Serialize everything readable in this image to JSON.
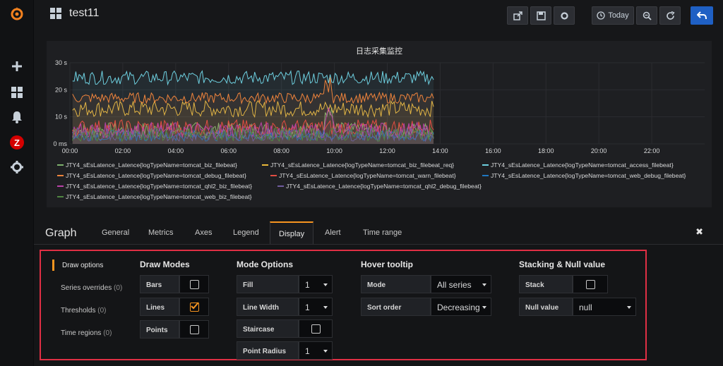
{
  "sidebar": {
    "icons": [
      "grafana-logo-icon",
      "plus-icon",
      "dashboards-icon",
      "bell-icon",
      "zabbix-icon",
      "gear-icon"
    ],
    "zabbix_letter": "Z"
  },
  "topbar": {
    "title": "test11",
    "time_label": "Today"
  },
  "panel": {
    "title": "日志采集监控"
  },
  "chart_data": {
    "type": "line",
    "title": "日志采集监控",
    "x": [
      "00:00",
      "02:00",
      "04:00",
      "06:00",
      "08:00",
      "10:00",
      "12:00",
      "14:00",
      "16:00",
      "18:00",
      "20:00",
      "22:00"
    ],
    "y_ticks": [
      "0 ms",
      "10 s",
      "20 s",
      "30 s"
    ],
    "ylim": [
      0,
      30
    ],
    "y_unit": "s",
    "grid": true,
    "legend_position": "bottom",
    "series": [
      {
        "name": "JTY4_sEsLatence_Latence{logTypeName=tomcat_biz_filebeat}",
        "color": "#7eb26d",
        "approx_range": [
          2,
          8
        ]
      },
      {
        "name": "JTY4_sEsLatence_Latence{logTypeName=tomcat_biz_filebeat_req}",
        "color": "#eab839",
        "approx_range": [
          10,
          16
        ]
      },
      {
        "name": "JTY4_sEsLatence_Latence{logTypeName=tomcat_access_filebeat}",
        "color": "#6ed0e0",
        "approx_range": [
          22,
          27
        ]
      },
      {
        "name": "JTY4_sEsLatence_Latence{logTypeName=tomcat_debug_filebeat}",
        "color": "#ef843c",
        "approx_range": [
          15,
          19
        ]
      },
      {
        "name": "JTY4_sEsLatence_Latence{logTypeName=tomcat_warn_filebeat}",
        "color": "#e24d42",
        "approx_range": [
          3,
          9
        ]
      },
      {
        "name": "JTY4_sEsLatence_Latence{logTypeName=tomcat_web_debug_filebeat}",
        "color": "#1f78c1",
        "approx_range": [
          1,
          5
        ]
      },
      {
        "name": "JTY4_sEsLatence_Latence{logTypeName=tomcat_qhl2_biz_filebeat}",
        "color": "#ba43a9",
        "approx_range": [
          2,
          8
        ]
      },
      {
        "name": "JTY4_sEsLatence_Latence{logTypeName=tomcat_qhl2_debug_filebeat}",
        "color": "#705da0",
        "approx_range": [
          1,
          6
        ]
      },
      {
        "name": "JTY4_sEsLatence_Latence{logTypeName=tomcat_web_biz_filebeat}",
        "color": "#508642",
        "approx_range": [
          1,
          6
        ]
      }
    ],
    "data_end": "13:45"
  },
  "editor": {
    "heading": "Graph",
    "tabs": [
      "General",
      "Metrics",
      "Axes",
      "Legend",
      "Display",
      "Alert",
      "Time range"
    ],
    "active_tab": "Display",
    "side": [
      {
        "label": "Draw options",
        "count": ""
      },
      {
        "label": "Series overrides",
        "count": "(0)"
      },
      {
        "label": "Thresholds",
        "count": "(0)"
      },
      {
        "label": "Time regions",
        "count": "(0)"
      }
    ],
    "draw_modes": {
      "title": "Draw Modes",
      "bars": "Bars",
      "lines": "Lines",
      "points": "Points",
      "bars_checked": false,
      "lines_checked": true,
      "points_checked": false
    },
    "mode_options": {
      "title": "Mode Options",
      "fill": "Fill",
      "fill_value": "1",
      "line_width": "Line Width",
      "line_width_value": "1",
      "staircase": "Staircase",
      "staircase_checked": false,
      "point_radius": "Point Radius",
      "point_radius_value": "1"
    },
    "hover": {
      "title": "Hover tooltip",
      "mode": "Mode",
      "mode_value": "All series",
      "sort": "Sort order",
      "sort_value": "Decreasing"
    },
    "stacking": {
      "title": "Stacking & Null value",
      "stack": "Stack",
      "stack_checked": false,
      "null_value": "Null value",
      "null_value_value": "null"
    }
  },
  "colors": {
    "accent": "#f79520",
    "highlight_box": "#e02f44",
    "primary_button": "#1f60c4"
  }
}
